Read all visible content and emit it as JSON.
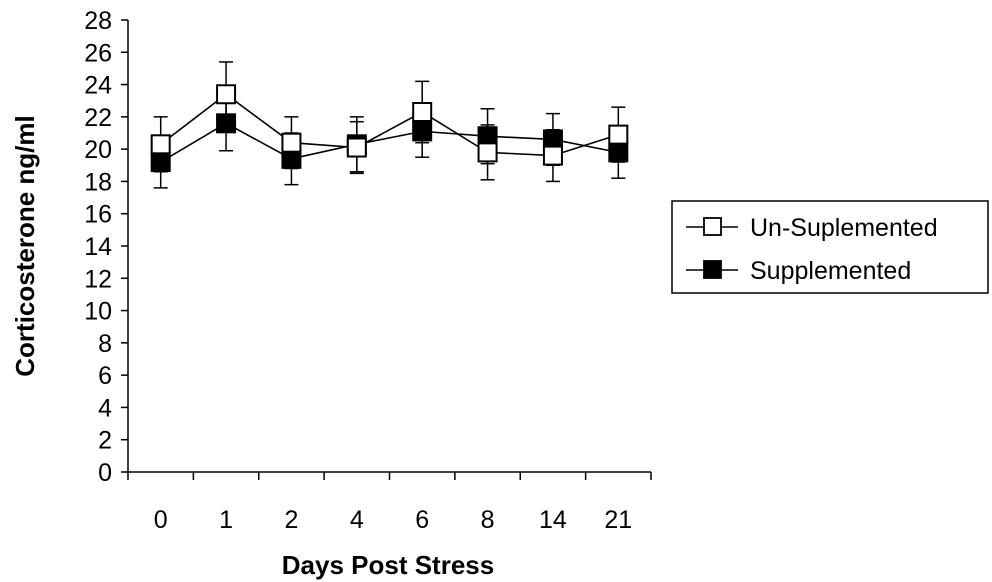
{
  "colors": {
    "axis": "#000000",
    "unsupplemented_fill": "#ffffff",
    "supplemented_fill": "#000000",
    "background": "#ffffff"
  },
  "chart_data": {
    "type": "line",
    "xlabel": "Days Post Stress",
    "ylabel": "Corticosterone ng/ml",
    "categories": [
      "0",
      "1",
      "2",
      "4",
      "6",
      "8",
      "14",
      "21"
    ],
    "ylim": [
      0,
      28
    ],
    "yticks": [
      0,
      2,
      4,
      6,
      8,
      10,
      12,
      14,
      16,
      18,
      20,
      22,
      24,
      26,
      28
    ],
    "grid": false,
    "legend_position": "right",
    "series": [
      {
        "name": "Un-Suplemented",
        "marker": "open-square",
        "values": [
          20.3,
          23.4,
          20.4,
          20.1,
          22.3,
          19.8,
          19.6,
          20.9
        ],
        "error": [
          1.7,
          2.0,
          1.6,
          1.6,
          1.9,
          1.7,
          1.6,
          1.7
        ]
      },
      {
        "name": "Supplemented",
        "marker": "filled-square",
        "values": [
          19.2,
          21.6,
          19.4,
          20.3,
          21.1,
          20.8,
          20.6,
          19.8
        ],
        "error": [
          1.6,
          1.7,
          1.6,
          1.7,
          1.6,
          1.7,
          1.6,
          1.6
        ]
      }
    ]
  }
}
